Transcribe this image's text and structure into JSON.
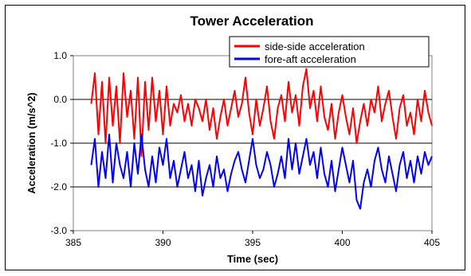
{
  "chart_data": {
    "type": "line",
    "title": "Tower Acceleration",
    "xlabel": "Time (sec)",
    "ylabel": "Acceleration (m/s^2)",
    "xlim": [
      385,
      405
    ],
    "ylim": [
      -3.0,
      1.0
    ],
    "xticks": [
      385,
      390,
      395,
      400,
      405
    ],
    "yticks": [
      1.0,
      0.0,
      -1.0,
      -2.0,
      -3.0
    ],
    "xtick_labels": [
      "385",
      "390",
      "395",
      "400",
      "405"
    ],
    "ytick_labels": [
      "1.0",
      "0.0",
      "-1.0",
      "-2.0",
      "-3.0"
    ],
    "grid": "horizontal",
    "legend_position": "top-right",
    "series": [
      {
        "name": "side-side acceleration",
        "color": "#ff0000",
        "x": [
          386.0,
          386.2,
          386.4,
          386.6,
          386.8,
          387.0,
          387.2,
          387.4,
          387.6,
          387.8,
          388.0,
          388.2,
          388.4,
          388.6,
          388.8,
          389.0,
          389.2,
          389.4,
          389.6,
          389.8,
          390.0,
          390.2,
          390.4,
          390.6,
          390.8,
          391.0,
          391.2,
          391.4,
          391.6,
          391.8,
          392.0,
          392.2,
          392.4,
          392.6,
          392.8,
          393.0,
          393.2,
          393.4,
          393.6,
          393.8,
          394.0,
          394.2,
          394.4,
          394.6,
          394.8,
          395.0,
          395.2,
          395.4,
          395.6,
          395.8,
          396.0,
          396.2,
          396.4,
          396.6,
          396.8,
          397.0,
          397.2,
          397.4,
          397.6,
          397.8,
          398.0,
          398.2,
          398.4,
          398.6,
          398.8,
          399.0,
          399.2,
          399.4,
          399.6,
          399.8,
          400.0,
          400.2,
          400.4,
          400.6,
          400.8,
          401.0,
          401.2,
          401.4,
          401.6,
          401.8,
          402.0,
          402.2,
          402.4,
          402.6,
          402.8,
          403.0,
          403.2,
          403.4,
          403.6,
          403.8,
          404.0,
          404.2,
          404.4,
          404.6,
          404.8,
          405.0
        ],
        "values": [
          -0.1,
          0.6,
          -0.8,
          0.4,
          -1.0,
          0.5,
          -0.6,
          0.3,
          -1.0,
          0.6,
          -0.4,
          0.2,
          -0.9,
          0.5,
          -1.3,
          0.4,
          -0.7,
          0.5,
          -0.5,
          0.2,
          -0.8,
          0.3,
          -0.6,
          -0.1,
          -0.3,
          0.1,
          -0.5,
          -0.1,
          -0.6,
          0.0,
          -0.2,
          -0.5,
          0.0,
          -0.7,
          -0.2,
          -0.9,
          -0.4,
          0.0,
          -0.6,
          -0.2,
          0.2,
          -0.4,
          -0.1,
          0.5,
          -0.3,
          -0.8,
          0.0,
          -0.6,
          -0.2,
          0.3,
          -0.5,
          -0.9,
          -0.2,
          0.1,
          -0.5,
          0.4,
          -0.3,
          0.1,
          -0.6,
          0.3,
          0.7,
          -0.2,
          0.2,
          -0.5,
          0.3,
          -0.4,
          -0.7,
          -0.1,
          -0.9,
          -0.3,
          0.1,
          -0.4,
          -0.8,
          -0.2,
          -1.0,
          -0.5,
          -0.1,
          -0.6,
          0.0,
          -0.3,
          0.3,
          -0.5,
          -0.1,
          0.2,
          -0.4,
          -0.9,
          -0.2,
          0.1,
          -0.6,
          -0.3,
          -0.8,
          0.0,
          -0.5,
          0.2,
          -0.3,
          -0.6
        ]
      },
      {
        "name": "fore-aft acceleration",
        "color": "#0000ff",
        "x": [
          386.0,
          386.2,
          386.4,
          386.6,
          386.8,
          387.0,
          387.2,
          387.4,
          387.6,
          387.8,
          388.0,
          388.2,
          388.4,
          388.6,
          388.8,
          389.0,
          389.2,
          389.4,
          389.6,
          389.8,
          390.0,
          390.2,
          390.4,
          390.6,
          390.8,
          391.0,
          391.2,
          391.4,
          391.6,
          391.8,
          392.0,
          392.2,
          392.4,
          392.6,
          392.8,
          393.0,
          393.2,
          393.4,
          393.6,
          393.8,
          394.0,
          394.2,
          394.4,
          394.6,
          394.8,
          395.0,
          395.2,
          395.4,
          395.6,
          395.8,
          396.0,
          396.2,
          396.4,
          396.6,
          396.8,
          397.0,
          397.2,
          397.4,
          397.6,
          397.8,
          398.0,
          398.2,
          398.4,
          398.6,
          398.8,
          399.0,
          399.2,
          399.4,
          399.6,
          399.8,
          400.0,
          400.2,
          400.4,
          400.6,
          400.8,
          401.0,
          401.2,
          401.4,
          401.6,
          401.8,
          402.0,
          402.2,
          402.4,
          402.6,
          402.8,
          403.0,
          403.2,
          403.4,
          403.6,
          403.8,
          404.0,
          404.2,
          404.4,
          404.6,
          404.8,
          405.0
        ],
        "values": [
          -1.5,
          -0.9,
          -2.0,
          -1.2,
          -1.8,
          -0.8,
          -1.9,
          -1.0,
          -1.5,
          -1.8,
          -1.2,
          -2.0,
          -1.0,
          -1.7,
          -0.8,
          -1.6,
          -2.0,
          -1.3,
          -1.9,
          -1.1,
          -1.5,
          -0.9,
          -1.8,
          -1.4,
          -2.0,
          -1.6,
          -1.2,
          -1.8,
          -1.5,
          -2.1,
          -1.4,
          -2.2,
          -1.8,
          -1.5,
          -2.0,
          -1.3,
          -1.8,
          -1.6,
          -2.1,
          -1.7,
          -1.4,
          -1.2,
          -1.6,
          -1.9,
          -1.4,
          -0.9,
          -1.5,
          -1.8,
          -1.6,
          -1.2,
          -1.5,
          -2.0,
          -1.7,
          -1.3,
          -1.8,
          -0.9,
          -1.6,
          -1.0,
          -1.7,
          -1.3,
          -0.9,
          -1.5,
          -1.2,
          -1.8,
          -1.1,
          -1.7,
          -2.0,
          -1.4,
          -2.1,
          -1.6,
          -1.1,
          -1.5,
          -1.9,
          -1.4,
          -2.3,
          -2.5,
          -1.9,
          -1.6,
          -2.0,
          -1.4,
          -1.1,
          -1.6,
          -1.9,
          -1.3,
          -1.7,
          -2.1,
          -1.5,
          -1.2,
          -1.8,
          -1.4,
          -1.9,
          -1.3,
          -1.7,
          -1.2,
          -1.5,
          -1.3
        ]
      }
    ]
  }
}
